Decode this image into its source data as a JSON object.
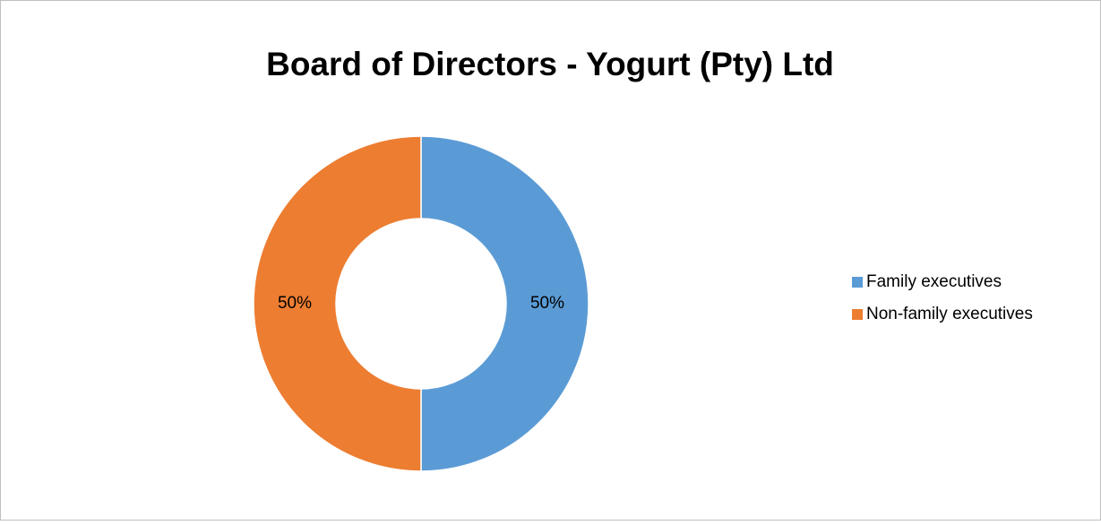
{
  "chart_data": {
    "type": "donut",
    "title": "Board of Directors - Yogurt (Pty) Ltd",
    "categories": [
      "Family executives",
      "Non-family executives"
    ],
    "values": [
      50,
      50
    ],
    "value_labels": [
      "50%",
      "50%"
    ],
    "colors": [
      "#5b9bd5",
      "#ed7d31"
    ],
    "legend": "right"
  }
}
